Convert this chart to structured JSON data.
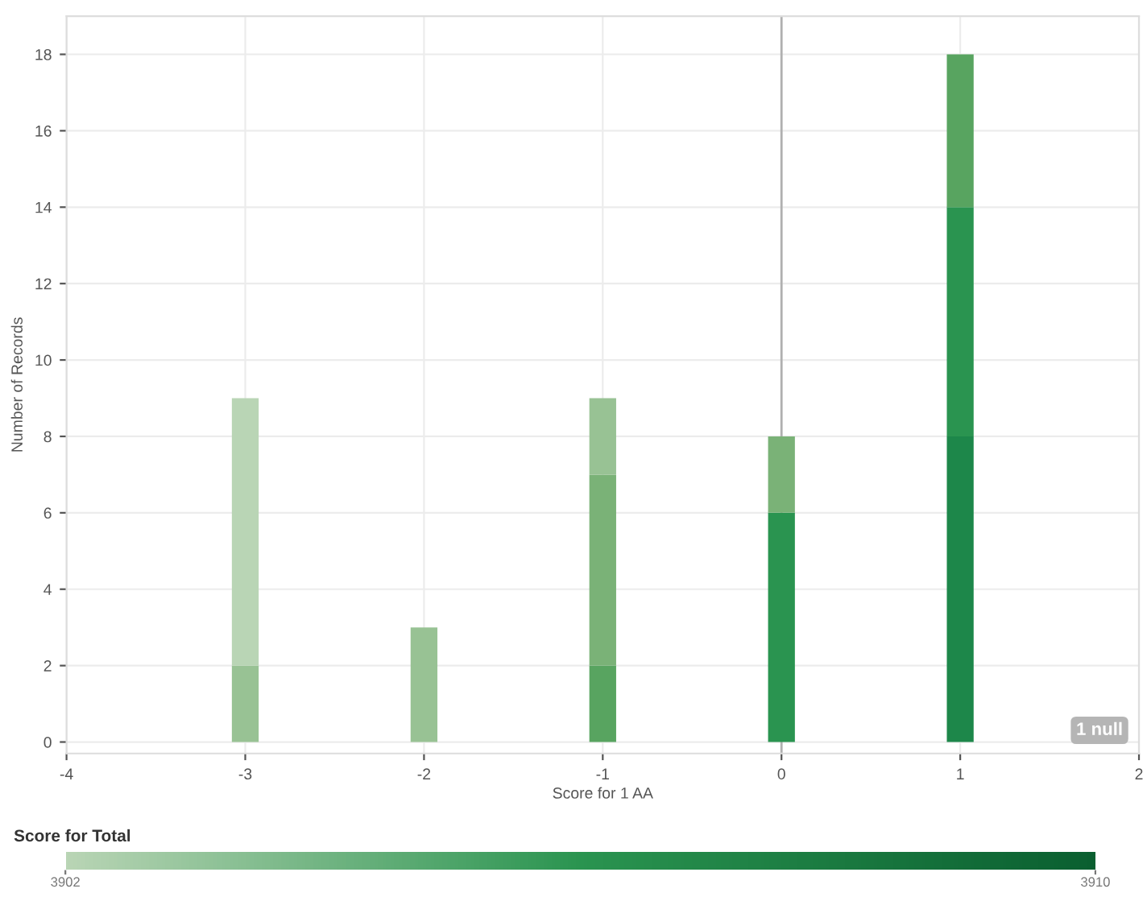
{
  "chart_data": {
    "type": "bar",
    "stacked": true,
    "xlabel": "Score for 1 AA",
    "ylabel": "Number of Records",
    "clabel": "Score for Total",
    "x": [
      -3,
      -2,
      -1,
      0,
      1
    ],
    "series": [
      {
        "values": [
          2,
          3,
          2,
          6,
          8
        ],
        "colors": [
          "#98c294",
          "#98c294",
          "#58a460",
          "#2a9450",
          "#1d874a"
        ]
      },
      {
        "values": [
          7,
          null,
          5,
          2,
          6
        ],
        "colors": [
          "#b9d5b5",
          null,
          "#7ab277",
          "#7ab277",
          "#2a9450"
        ]
      },
      {
        "values": [
          null,
          null,
          2,
          null,
          4
        ],
        "colors": [
          null,
          null,
          "#98c294",
          null,
          "#58a460"
        ]
      }
    ],
    "xlim": [
      -4,
      2
    ],
    "xticks": [
      -4,
      -3,
      -2,
      -1,
      0,
      1,
      2
    ],
    "ylim": [
      -0.3,
      19
    ],
    "yticks": [
      0,
      2,
      4,
      6,
      8,
      10,
      12,
      14,
      16,
      18
    ],
    "clim": [
      3902,
      3910
    ],
    "cticks": [
      3902,
      3910
    ],
    "ref_lines": [
      {
        "axis": "x",
        "value": 0,
        "color": "#b0b0b0"
      }
    ],
    "annotations": [
      "1 null"
    ],
    "grid": true
  }
}
